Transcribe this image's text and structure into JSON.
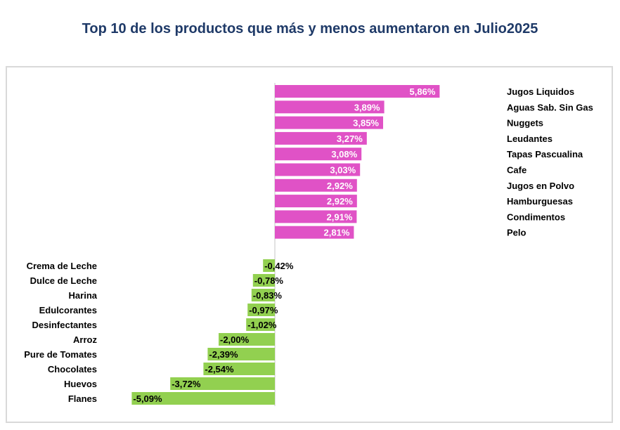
{
  "title": "Top 10 de los productos que más y menos aumentaron en Julio2025",
  "colors": {
    "positive": "#e052c6",
    "negative": "#92d050",
    "title": "#1f3a68"
  },
  "chart_data": {
    "type": "bar",
    "orientation": "horizontal",
    "series": [
      {
        "categories": [
          "Jugos Liquidos",
          "Aguas Sab. Sin Gas",
          "Nuggets",
          "Leudantes",
          "Tapas Pascualina",
          "Cafe",
          "Jugos en Polvo",
          "Hamburguesas",
          "Condimentos",
          "Pelo"
        ],
        "values": [
          5.86,
          3.89,
          3.85,
          3.27,
          3.08,
          3.03,
          2.92,
          2.92,
          2.91,
          2.81
        ],
        "labels": [
          "5,86%",
          "3,89%",
          "3,85%",
          "3,27%",
          "3,08%",
          "3,03%",
          "2,92%",
          "2,92%",
          "2,91%",
          "2,81%"
        ]
      },
      {
        "categories": [
          "Crema de Leche",
          "Dulce de Leche",
          "Harina",
          "Edulcorantes",
          "Desinfectantes",
          "Arroz",
          "Pure de Tomates",
          "Chocolates",
          "Huevos",
          "Flanes"
        ],
        "values": [
          -0.42,
          -0.78,
          -0.83,
          -0.97,
          -1.02,
          -2.0,
          -2.39,
          -2.54,
          -3.72,
          -5.09
        ],
        "labels": [
          "-0,42%",
          "-0,78%",
          "-0,83%",
          "-0,97%",
          "-1,02%",
          "-2,00%",
          "-2,39%",
          "-2,54%",
          "-3,72%",
          "-5,09%"
        ]
      }
    ]
  }
}
